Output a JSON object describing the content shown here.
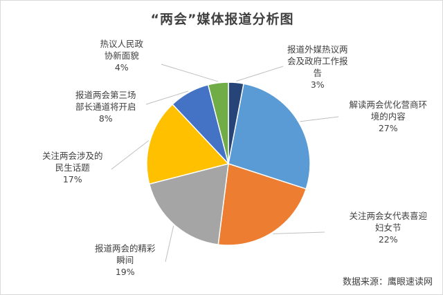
{
  "chart_data": {
    "type": "pie",
    "title": "“两会”媒体报道分析图",
    "slices": [
      {
        "label": "报道外媒热议两会及政府工作报告",
        "label_lines": [
          "报道外媒热议两",
          "会及政府工作报",
          "告"
        ],
        "value": 3,
        "value_label": "3%",
        "color": "#264478"
      },
      {
        "label": "解读两会优化营商环境的内容",
        "label_lines": [
          "解读两会优化营商环",
          "境的内容"
        ],
        "value": 27,
        "value_label": "27%",
        "color": "#5B9BD5"
      },
      {
        "label": "关注两会女代表喜迎妇女节",
        "label_lines": [
          "关注两会女代表喜迎",
          "妇女节"
        ],
        "value": 22,
        "value_label": "22%",
        "color": "#ED7D31"
      },
      {
        "label": "报道两会的精彩瞬间",
        "label_lines": [
          "报道两会的精彩",
          "瞬间"
        ],
        "value": 19,
        "value_label": "19%",
        "color": "#A5A5A5"
      },
      {
        "label": "关注两会涉及的民生话题",
        "label_lines": [
          "关注两会涉及的",
          "民生话题"
        ],
        "value": 17,
        "value_label": "17%",
        "color": "#FFC000"
      },
      {
        "label": "报道两会第三场部长通道将开启",
        "label_lines": [
          "报道两会第三场",
          "部长通道将开启"
        ],
        "value": 8,
        "value_label": "8%",
        "color": "#4472C4"
      },
      {
        "label": "热议人民政协新面貌",
        "label_lines": [
          "热议人民政",
          "协新面貌"
        ],
        "value": 4,
        "value_label": "4%",
        "color": "#70AD47"
      }
    ],
    "legend": "none"
  },
  "source_note": "数据来源：鹰眼速读网"
}
